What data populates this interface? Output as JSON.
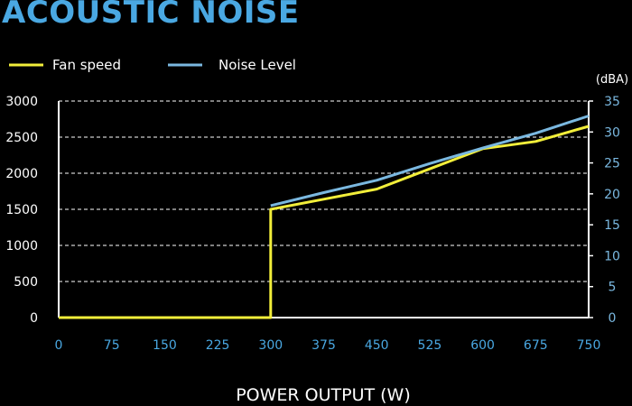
{
  "chart_data": {
    "type": "line",
    "title": "ACOUSTIC NOISE",
    "xlabel": "POWER OUTPUT (W)",
    "ylabel_left": "",
    "ylabel_right": "(dBA)",
    "x": [
      0,
      75,
      150,
      225,
      300,
      375,
      450,
      525,
      600,
      675,
      750
    ],
    "xlim": [
      0,
      750
    ],
    "ylim_left": [
      0,
      3000
    ],
    "ylim_right": [
      0,
      35
    ],
    "y_ticks_left": [
      0,
      500,
      1000,
      1500,
      2000,
      2500,
      3000
    ],
    "y_ticks_right": [
      0,
      5,
      10,
      15,
      20,
      25,
      30,
      35
    ],
    "grid": true,
    "legend_position": "top-left",
    "series": [
      {
        "name": "Fan speed",
        "axis": "left",
        "color": "#f2ee3a",
        "points": [
          [
            0,
            0
          ],
          [
            300,
            0
          ],
          [
            300,
            1500
          ],
          [
            375,
            1640
          ],
          [
            450,
            1780
          ],
          [
            525,
            2060
          ],
          [
            600,
            2340
          ],
          [
            675,
            2440
          ],
          [
            750,
            2650
          ]
        ]
      },
      {
        "name": "Noise Level",
        "axis": "right",
        "color": "#7ab8e0",
        "points": [
          [
            300,
            18.1
          ],
          [
            375,
            20.2
          ],
          [
            450,
            22.2
          ],
          [
            525,
            24.9
          ],
          [
            600,
            27.4
          ],
          [
            675,
            29.8
          ],
          [
            750,
            32.6
          ]
        ]
      }
    ],
    "colors": {
      "title": "#4aa8e2",
      "x_ticks": "#4aa8e2",
      "right_ticks": "#7ab8e0",
      "left_ticks": "#ffffff",
      "grid": "#ffffff"
    }
  }
}
